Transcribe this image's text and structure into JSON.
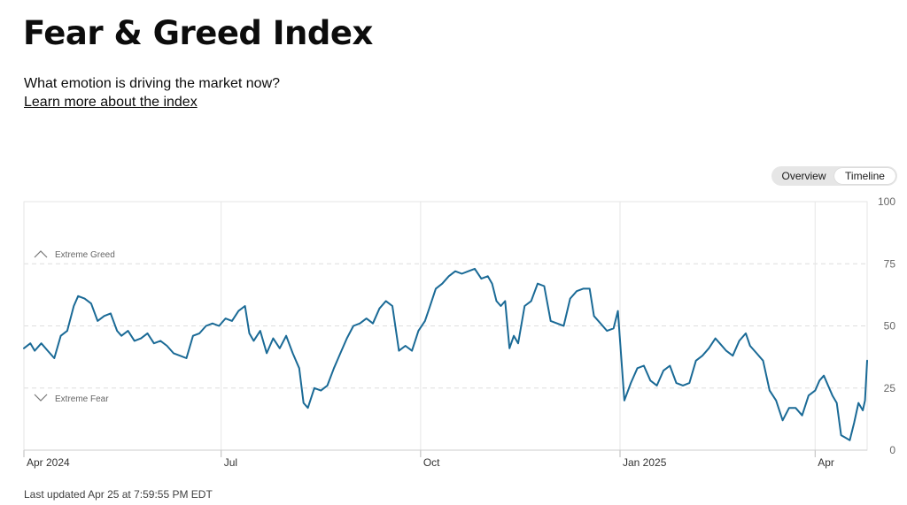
{
  "header": {
    "title": "Fear & Greed Index",
    "subtitle": "What emotion is driving the market now?",
    "learn_more": "Learn more about the index"
  },
  "view_toggle": {
    "options": [
      "Overview",
      "Timeline"
    ],
    "selected": "Timeline"
  },
  "footer": {
    "last_updated": "Last updated Apr 25 at 7:59:55 PM EDT"
  },
  "colors": {
    "line": "#1a6a96",
    "grid": "#e6e6e6",
    "axis_text": "#666666"
  },
  "chart_data": {
    "type": "line",
    "title": "",
    "xlabel": "",
    "ylabel": "",
    "ylim": [
      0,
      100
    ],
    "xlim": [
      "2024-04-01",
      "2025-04-25"
    ],
    "y_ticks": [
      0,
      25,
      50,
      75,
      100
    ],
    "x_ticks": [
      {
        "label": "Apr 2024",
        "date": "2024-04-01"
      },
      {
        "label": "Jul",
        "date": "2024-07-01"
      },
      {
        "label": "Oct",
        "date": "2024-10-01"
      },
      {
        "label": "Jan 2025",
        "date": "2025-01-01"
      },
      {
        "label": "Apr",
        "date": "2025-04-01"
      }
    ],
    "zone_labels": [
      {
        "label": "Extreme Greed",
        "value": 79
      },
      {
        "label": "Extreme Fear",
        "value": 21
      }
    ],
    "grid": true,
    "series": [
      {
        "values": [
          [
            "2024-04-01",
            41
          ],
          [
            "2024-04-04",
            43
          ],
          [
            "2024-04-06",
            40
          ],
          [
            "2024-04-09",
            43
          ],
          [
            "2024-04-12",
            40
          ],
          [
            "2024-04-15",
            37
          ],
          [
            "2024-04-18",
            46
          ],
          [
            "2024-04-21",
            48
          ],
          [
            "2024-04-24",
            58
          ],
          [
            "2024-04-26",
            62
          ],
          [
            "2024-04-29",
            61
          ],
          [
            "2024-05-02",
            59
          ],
          [
            "2024-05-05",
            52
          ],
          [
            "2024-05-08",
            54
          ],
          [
            "2024-05-11",
            55
          ],
          [
            "2024-05-14",
            48
          ],
          [
            "2024-05-16",
            46
          ],
          [
            "2024-05-19",
            48
          ],
          [
            "2024-05-22",
            44
          ],
          [
            "2024-05-25",
            45
          ],
          [
            "2024-05-28",
            47
          ],
          [
            "2024-05-31",
            43
          ],
          [
            "2024-06-03",
            44
          ],
          [
            "2024-06-06",
            42
          ],
          [
            "2024-06-09",
            39
          ],
          [
            "2024-06-12",
            38
          ],
          [
            "2024-06-15",
            37
          ],
          [
            "2024-06-18",
            46
          ],
          [
            "2024-06-21",
            47
          ],
          [
            "2024-06-24",
            50
          ],
          [
            "2024-06-27",
            51
          ],
          [
            "2024-06-30",
            50
          ],
          [
            "2024-07-03",
            53
          ],
          [
            "2024-07-06",
            52
          ],
          [
            "2024-07-09",
            56
          ],
          [
            "2024-07-12",
            58
          ],
          [
            "2024-07-14",
            47
          ],
          [
            "2024-07-16",
            44
          ],
          [
            "2024-07-19",
            48
          ],
          [
            "2024-07-22",
            39
          ],
          [
            "2024-07-25",
            45
          ],
          [
            "2024-07-28",
            41
          ],
          [
            "2024-07-31",
            46
          ],
          [
            "2024-08-03",
            39
          ],
          [
            "2024-08-06",
            33
          ],
          [
            "2024-08-08",
            19
          ],
          [
            "2024-08-10",
            17
          ],
          [
            "2024-08-13",
            25
          ],
          [
            "2024-08-16",
            24
          ],
          [
            "2024-08-19",
            26
          ],
          [
            "2024-08-22",
            33
          ],
          [
            "2024-08-25",
            39
          ],
          [
            "2024-08-28",
            45
          ],
          [
            "2024-08-31",
            50
          ],
          [
            "2024-09-03",
            51
          ],
          [
            "2024-09-06",
            53
          ],
          [
            "2024-09-09",
            51
          ],
          [
            "2024-09-12",
            57
          ],
          [
            "2024-09-15",
            60
          ],
          [
            "2024-09-18",
            58
          ],
          [
            "2024-09-21",
            40
          ],
          [
            "2024-09-24",
            42
          ],
          [
            "2024-09-27",
            40
          ],
          [
            "2024-09-30",
            48
          ],
          [
            "2024-10-03",
            52
          ],
          [
            "2024-10-05",
            57
          ],
          [
            "2024-10-08",
            65
          ],
          [
            "2024-10-11",
            67
          ],
          [
            "2024-10-14",
            70
          ],
          [
            "2024-10-17",
            72
          ],
          [
            "2024-10-20",
            71
          ],
          [
            "2024-10-23",
            72
          ],
          [
            "2024-10-26",
            73
          ],
          [
            "2024-10-29",
            69
          ],
          [
            "2024-11-01",
            70
          ],
          [
            "2024-11-03",
            67
          ],
          [
            "2024-11-05",
            60
          ],
          [
            "2024-11-07",
            58
          ],
          [
            "2024-11-09",
            60
          ],
          [
            "2024-11-11",
            41
          ],
          [
            "2024-11-13",
            46
          ],
          [
            "2024-11-15",
            43
          ],
          [
            "2024-11-18",
            58
          ],
          [
            "2024-11-21",
            60
          ],
          [
            "2024-11-24",
            67
          ],
          [
            "2024-11-27",
            66
          ],
          [
            "2024-11-30",
            52
          ],
          [
            "2024-12-03",
            51
          ],
          [
            "2024-12-06",
            50
          ],
          [
            "2024-12-09",
            61
          ],
          [
            "2024-12-12",
            64
          ],
          [
            "2024-12-15",
            65
          ],
          [
            "2024-12-18",
            65
          ],
          [
            "2024-12-20",
            54
          ],
          [
            "2024-12-23",
            51
          ],
          [
            "2024-12-26",
            48
          ],
          [
            "2024-12-29",
            49
          ],
          [
            "2024-12-31",
            56
          ],
          [
            "2025-01-03",
            20
          ],
          [
            "2025-01-06",
            27
          ],
          [
            "2025-01-09",
            33
          ],
          [
            "2025-01-12",
            34
          ],
          [
            "2025-01-15",
            28
          ],
          [
            "2025-01-18",
            26
          ],
          [
            "2025-01-21",
            32
          ],
          [
            "2025-01-24",
            34
          ],
          [
            "2025-01-27",
            27
          ],
          [
            "2025-01-30",
            26
          ],
          [
            "2025-02-02",
            27
          ],
          [
            "2025-02-05",
            36
          ],
          [
            "2025-02-08",
            38
          ],
          [
            "2025-02-11",
            41
          ],
          [
            "2025-02-14",
            45
          ],
          [
            "2025-02-16",
            43
          ],
          [
            "2025-02-19",
            40
          ],
          [
            "2025-02-22",
            38
          ],
          [
            "2025-02-25",
            44
          ],
          [
            "2025-02-28",
            47
          ],
          [
            "2025-03-02",
            42
          ],
          [
            "2025-03-05",
            39
          ],
          [
            "2025-03-08",
            36
          ],
          [
            "2025-03-11",
            24
          ],
          [
            "2025-03-14",
            20
          ],
          [
            "2025-03-17",
            12
          ],
          [
            "2025-03-20",
            17
          ],
          [
            "2025-03-23",
            17
          ],
          [
            "2025-03-26",
            14
          ],
          [
            "2025-03-29",
            22
          ],
          [
            "2025-04-01",
            24
          ],
          [
            "2025-04-03",
            28
          ],
          [
            "2025-04-05",
            30
          ],
          [
            "2025-04-07",
            26
          ],
          [
            "2025-04-09",
            22
          ],
          [
            "2025-04-11",
            19
          ],
          [
            "2025-04-13",
            6
          ],
          [
            "2025-04-15",
            5
          ],
          [
            "2025-04-17",
            4
          ],
          [
            "2025-04-19",
            11
          ],
          [
            "2025-04-21",
            19
          ],
          [
            "2025-04-23",
            16
          ],
          [
            "2025-04-24",
            20
          ],
          [
            "2025-04-25",
            36
          ]
        ]
      }
    ]
  }
}
